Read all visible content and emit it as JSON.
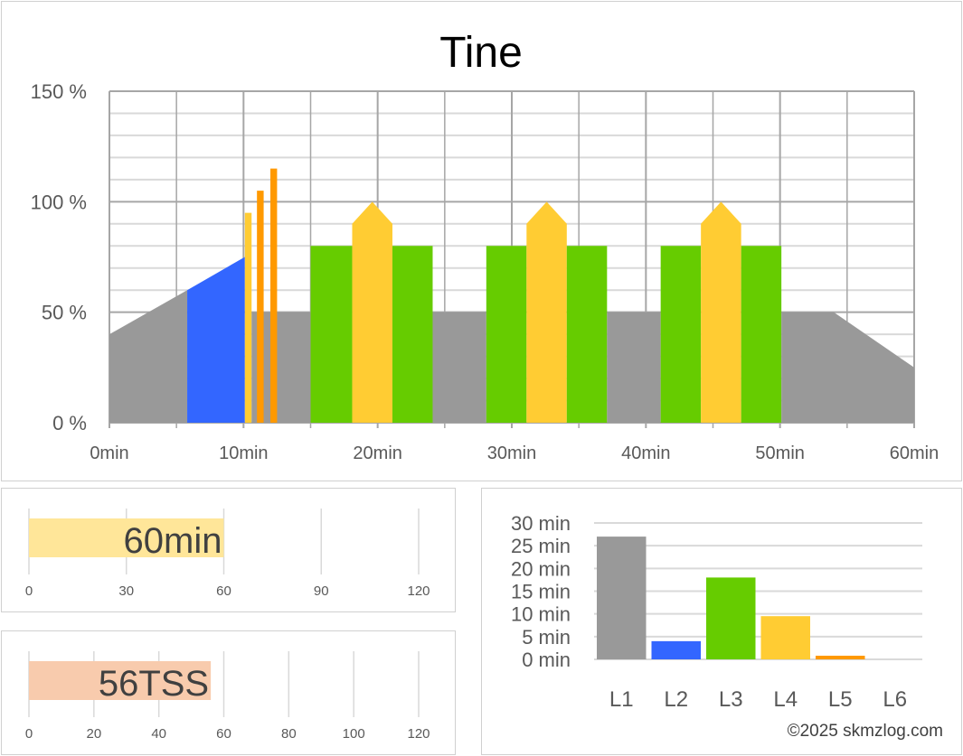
{
  "chart_data": [
    {
      "type": "area",
      "title": "Tine",
      "xlabel": "",
      "ylabel": "",
      "xlim": [
        0,
        60
      ],
      "ylim": [
        0,
        150
      ],
      "x_ticks": [
        "0min",
        "10min",
        "20min",
        "30min",
        "40min",
        "50min",
        "60min"
      ],
      "y_ticks": [
        "0 %",
        "50 %",
        "100 %",
        "150 %"
      ],
      "grid": true,
      "colors": {
        "L1": "#999999",
        "L2": "#3366ff",
        "L3": "#66cc00",
        "L4": "#ffcc33",
        "L5": "#ff9900"
      },
      "segments": [
        {
          "zone": "L1",
          "points": [
            [
              0,
              0
            ],
            [
              0,
              40
            ],
            [
              5.8,
              60
            ],
            [
              5.8,
              0
            ]
          ]
        },
        {
          "zone": "L2",
          "points": [
            [
              5.8,
              0
            ],
            [
              5.8,
              60
            ],
            [
              10.1,
              75
            ],
            [
              10.1,
              0
            ]
          ]
        },
        {
          "zone": "L4",
          "points": [
            [
              10.1,
              0
            ],
            [
              10.1,
              95
            ],
            [
              10.6,
              95
            ],
            [
              10.6,
              0
            ]
          ]
        },
        {
          "zone": "L1",
          "points": [
            [
              10.6,
              0
            ],
            [
              10.6,
              50
            ],
            [
              15,
              50
            ],
            [
              15,
              0
            ]
          ]
        },
        {
          "zone": "L5",
          "points": [
            [
              11.0,
              0
            ],
            [
              11.0,
              105
            ],
            [
              11.5,
              105
            ],
            [
              11.5,
              0
            ]
          ]
        },
        {
          "zone": "L5",
          "points": [
            [
              12.0,
              0
            ],
            [
              12.0,
              115
            ],
            [
              12.5,
              115
            ],
            [
              12.5,
              0
            ]
          ]
        },
        {
          "zone": "L3",
          "points": [
            [
              15,
              0
            ],
            [
              15,
              80
            ],
            [
              18.1,
              80
            ],
            [
              18.1,
              0
            ]
          ]
        },
        {
          "zone": "L4",
          "points": [
            [
              18.1,
              0
            ],
            [
              18.1,
              90
            ],
            [
              19.6,
              100
            ],
            [
              21.1,
              90
            ],
            [
              21.1,
              0
            ]
          ]
        },
        {
          "zone": "L3",
          "points": [
            [
              21.1,
              0
            ],
            [
              21.1,
              80
            ],
            [
              24.1,
              80
            ],
            [
              24.1,
              0
            ]
          ]
        },
        {
          "zone": "L1",
          "points": [
            [
              24.1,
              0
            ],
            [
              24.1,
              50
            ],
            [
              28.1,
              50
            ],
            [
              28.1,
              0
            ]
          ]
        },
        {
          "zone": "L3",
          "points": [
            [
              28.1,
              0
            ],
            [
              28.1,
              80
            ],
            [
              31.1,
              80
            ],
            [
              31.1,
              0
            ]
          ]
        },
        {
          "zone": "L4",
          "points": [
            [
              31.1,
              0
            ],
            [
              31.1,
              90
            ],
            [
              32.6,
              100
            ],
            [
              34.1,
              90
            ],
            [
              34.1,
              0
            ]
          ]
        },
        {
          "zone": "L3",
          "points": [
            [
              34.1,
              0
            ],
            [
              34.1,
              80
            ],
            [
              37.1,
              80
            ],
            [
              37.1,
              0
            ]
          ]
        },
        {
          "zone": "L1",
          "points": [
            [
              37.1,
              0
            ],
            [
              37.1,
              50
            ],
            [
              41.1,
              50
            ],
            [
              41.1,
              0
            ]
          ]
        },
        {
          "zone": "L3",
          "points": [
            [
              41.1,
              0
            ],
            [
              41.1,
              80
            ],
            [
              44.1,
              80
            ],
            [
              44.1,
              0
            ]
          ]
        },
        {
          "zone": "L4",
          "points": [
            [
              44.1,
              0
            ],
            [
              44.1,
              90
            ],
            [
              45.6,
              100
            ],
            [
              47.1,
              90
            ],
            [
              47.1,
              0
            ]
          ]
        },
        {
          "zone": "L3",
          "points": [
            [
              47.1,
              0
            ],
            [
              47.1,
              80
            ],
            [
              50.1,
              80
            ],
            [
              50.1,
              0
            ]
          ]
        },
        {
          "zone": "L1",
          "points": [
            [
              50.1,
              0
            ],
            [
              50.1,
              50
            ],
            [
              54,
              50
            ],
            [
              60,
              25
            ],
            [
              60,
              0
            ]
          ]
        }
      ]
    },
    {
      "type": "bar",
      "orientation": "horizontal",
      "title": "",
      "value": 60,
      "label": "60min",
      "xlim": [
        0,
        120
      ],
      "x_ticks": [
        "0",
        "30",
        "60",
        "90",
        "120"
      ],
      "color": "#ffe699"
    },
    {
      "type": "bar",
      "orientation": "horizontal",
      "title": "",
      "value": 56,
      "label": "56TSS",
      "xlim": [
        0,
        120
      ],
      "x_ticks": [
        "0",
        "20",
        "40",
        "60",
        "80",
        "100",
        "120"
      ],
      "color": "#f8cbad"
    },
    {
      "type": "bar",
      "title": "",
      "categories": [
        "L1",
        "L2",
        "L3",
        "L4",
        "L5",
        "L6"
      ],
      "values": [
        27,
        4,
        18,
        9.5,
        0.8,
        0
      ],
      "colors": [
        "#999999",
        "#3366ff",
        "#66cc00",
        "#ffcc33",
        "#ff9900",
        "#ff0000"
      ],
      "ylim": [
        0,
        30
      ],
      "y_ticks": [
        "0 min",
        "5 min",
        "10 min",
        "15 min",
        "20 min",
        "25 min",
        "30 min"
      ],
      "grid": true
    }
  ],
  "footer": {
    "copyright": "©2025 skmzlog.com"
  }
}
